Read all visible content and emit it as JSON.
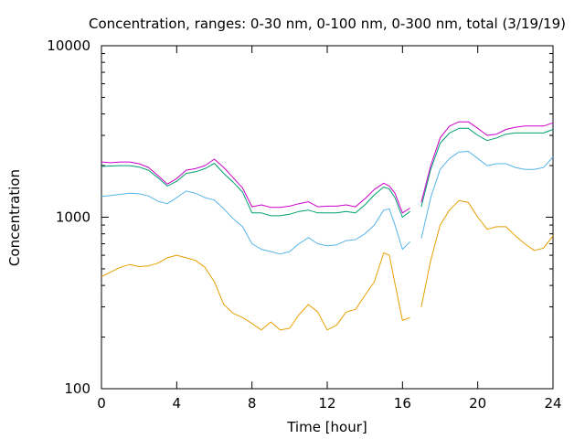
{
  "chart_data": {
    "type": "line",
    "title": "Concentration, ranges: 0-30 nm, 0-100 nm, 0-300 nm, total (3/19/19)",
    "xlabel": "Time [hour]",
    "ylabel": "Concentration",
    "xlim": [
      0,
      24
    ],
    "ylim": [
      100,
      10000
    ],
    "yscale": "log",
    "xticks": [
      "0",
      "4",
      "8",
      "12",
      "16",
      "20",
      "24"
    ],
    "yticks": [
      "100",
      "1000",
      "10000"
    ],
    "grid": false,
    "legend": "none",
    "series": [
      {
        "color": "#e69f00",
        "x": [
          0,
          0.5,
          1,
          1.5,
          2,
          2.5,
          3,
          3.5,
          4,
          4.5,
          5,
          5.5,
          6,
          6.5,
          7,
          7.5,
          8,
          8.5,
          9,
          9.5,
          10,
          10.5,
          11,
          11.5,
          12,
          12.5,
          13,
          13.5,
          14,
          14.5,
          15,
          15.3,
          15.6,
          16,
          16.4,
          16.7,
          17,
          17.5,
          18,
          18.5,
          19,
          19.5,
          20,
          20.5,
          21,
          21.5,
          22,
          22.5,
          23,
          23.5,
          24
        ],
        "y": [
          450,
          480,
          510,
          530,
          515,
          520,
          540,
          580,
          600,
          580,
          560,
          510,
          420,
          310,
          275,
          260,
          240,
          220,
          245,
          220,
          225,
          270,
          310,
          280,
          220,
          235,
          280,
          290,
          350,
          420,
          620,
          600,
          410,
          250,
          260,
          null,
          300,
          560,
          900,
          1100,
          1250,
          1220,
          1000,
          850,
          880,
          880,
          780,
          700,
          640,
          660,
          780
        ]
      },
      {
        "color": "#56b4e9",
        "x": [
          0,
          0.5,
          1,
          1.5,
          2,
          2.5,
          3,
          3.5,
          4,
          4.5,
          5,
          5.5,
          6,
          6.5,
          7,
          7.5,
          8,
          8.5,
          9,
          9.5,
          10,
          10.5,
          11,
          11.5,
          12,
          12.5,
          13,
          13.5,
          14,
          14.5,
          15,
          15.3,
          15.6,
          16,
          16.4,
          16.7,
          17,
          17.5,
          18,
          18.5,
          19,
          19.5,
          20,
          20.5,
          21,
          21.5,
          22,
          22.5,
          23,
          23.5,
          24
        ],
        "y": [
          1320,
          1340,
          1360,
          1380,
          1370,
          1330,
          1240,
          1200,
          1300,
          1420,
          1380,
          1300,
          1260,
          1120,
          980,
          880,
          700,
          650,
          630,
          610,
          630,
          700,
          760,
          700,
          680,
          690,
          730,
          740,
          800,
          900,
          1100,
          1120,
          900,
          650,
          720,
          null,
          750,
          1300,
          1900,
          2200,
          2400,
          2420,
          2200,
          2000,
          2050,
          2050,
          1950,
          1900,
          1900,
          1950,
          2250
        ]
      },
      {
        "color": "#009e73",
        "x": [
          0,
          0.5,
          1,
          1.5,
          2,
          2.5,
          3,
          3.5,
          4,
          4.5,
          5,
          5.5,
          6,
          6.5,
          7,
          7.5,
          8,
          8.5,
          9,
          9.5,
          10,
          10.5,
          11,
          11.5,
          12,
          12.5,
          13,
          13.5,
          14,
          14.5,
          15,
          15.3,
          15.6,
          16,
          16.4,
          16.7,
          17,
          17.5,
          18,
          18.5,
          19,
          19.5,
          20,
          20.5,
          21,
          21.5,
          22,
          22.5,
          23,
          23.5,
          24
        ],
        "y": [
          1980,
          1990,
          2000,
          2000,
          1960,
          1880,
          1700,
          1520,
          1620,
          1800,
          1840,
          1920,
          2060,
          1800,
          1600,
          1400,
          1060,
          1060,
          1020,
          1020,
          1040,
          1080,
          1100,
          1060,
          1060,
          1060,
          1080,
          1060,
          1180,
          1350,
          1500,
          1460,
          1300,
          1000,
          1080,
          null,
          1150,
          1900,
          2700,
          3100,
          3300,
          3300,
          3000,
          2800,
          2900,
          3050,
          3100,
          3100,
          3100,
          3100,
          3250
        ]
      },
      {
        "color": "#cc00cc",
        "x": [
          0,
          0.5,
          1,
          1.5,
          2,
          2.5,
          3,
          3.5,
          4,
          4.5,
          5,
          5.5,
          6,
          6.5,
          7,
          7.5,
          8,
          8.5,
          9,
          9.5,
          10,
          10.5,
          11,
          11.5,
          12,
          12.5,
          13,
          13.5,
          14,
          14.5,
          15,
          15.3,
          15.6,
          16,
          16.4,
          16.7,
          17,
          17.5,
          18,
          18.5,
          19,
          19.5,
          20,
          20.5,
          21,
          21.5,
          22,
          22.5,
          23,
          23.5,
          24
        ],
        "y": [
          2100,
          2080,
          2100,
          2100,
          2050,
          1950,
          1750,
          1560,
          1680,
          1880,
          1920,
          2000,
          2180,
          1950,
          1700,
          1480,
          1150,
          1180,
          1140,
          1140,
          1160,
          1200,
          1230,
          1150,
          1160,
          1160,
          1180,
          1150,
          1280,
          1450,
          1580,
          1520,
          1380,
          1060,
          1130,
          null,
          1220,
          2000,
          2900,
          3400,
          3600,
          3600,
          3300,
          3000,
          3050,
          3250,
          3350,
          3400,
          3400,
          3400,
          3550
        ]
      }
    ]
  }
}
